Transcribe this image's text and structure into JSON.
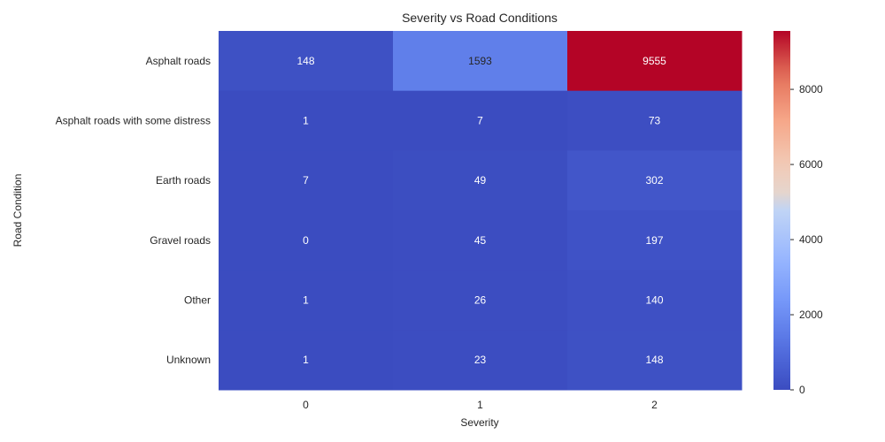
{
  "chart_data": {
    "type": "heatmap",
    "title": "Severity vs Road Conditions",
    "xlabel": "Severity",
    "ylabel": "Road Condition",
    "x_categories": [
      "0",
      "1",
      "2"
    ],
    "y_categories": [
      "Asphalt roads",
      "Asphalt roads with some distress",
      "Earth roads",
      "Gravel roads",
      "Other",
      "Unknown"
    ],
    "values": [
      [
        148,
        1593,
        9555
      ],
      [
        1,
        7,
        73
      ],
      [
        7,
        49,
        302
      ],
      [
        0,
        45,
        197
      ],
      [
        1,
        26,
        140
      ],
      [
        1,
        23,
        148
      ]
    ],
    "colormap": "coolwarm",
    "colorbar": {
      "range": [
        0,
        9555
      ],
      "ticks": [
        0,
        2000,
        4000,
        6000,
        8000
      ],
      "tick_labels": [
        "0",
        "2000",
        "4000",
        "6000",
        "8000"
      ]
    },
    "annotations": true
  }
}
